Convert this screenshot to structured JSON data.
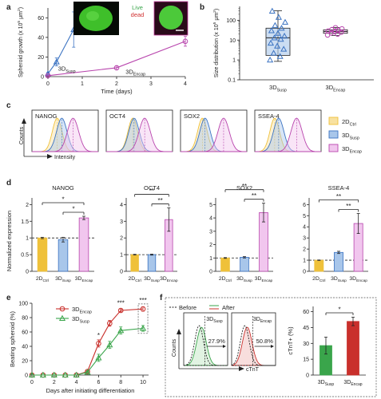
{
  "colors": {
    "susp": "#3b73c2",
    "encap": "#b845ad",
    "ctrl": "#efc13a",
    "susp_fill": "#a8c6ea",
    "encap_fill": "#f1c6ee",
    "ctrl_fill": "#f8e1a0",
    "red": "#c9302c",
    "green": "#3aa54b",
    "black": "#222222"
  },
  "panel_labels": [
    "a",
    "b",
    "c",
    "d",
    "e",
    "f"
  ],
  "group_labels": {
    "ctrl": {
      "main": "2D",
      "sub": "Ctrl"
    },
    "susp": {
      "main": "3D",
      "sub": "Susp"
    },
    "encap": {
      "main": "3D",
      "sub": "Encap"
    }
  },
  "a": {
    "ylabel_main": "Spheroid growth (x 10",
    "ylabel_exp": "5",
    "ylabel_unit": " μm",
    "ylabel_exp2": "2",
    "ylabel_end": ")",
    "xlabel": "Time (days)",
    "legend_live": "Live",
    "legend_dead": "dead"
  },
  "b": {
    "ylabel_main": "Size distribution (x 10",
    "ylabel_exp": "5",
    "ylabel_unit": " μm",
    "ylabel_exp2": "2",
    "ylabel_end": ")"
  },
  "c": {
    "markers": [
      "NANOG",
      "OCT4",
      "SOX2",
      "SSEA-4"
    ],
    "y_axis": "Counts",
    "x_axis": "Intensity"
  },
  "d": {
    "ylabel": "Normalized expression",
    "markers": [
      "NANOG",
      "OCT4",
      "SOX2",
      "SSEA-4"
    ],
    "star_single": "*",
    "star_double": "**"
  },
  "e": {
    "ylabel": "Beating spheroid (%)",
    "xlabel": "Days after initiating differentiation",
    "stars": [
      "*",
      "***",
      "***"
    ]
  },
  "f": {
    "legend_before": "Before",
    "legend_after": "After",
    "pct_susp": "27.9%",
    "pct_encap": "50.8%",
    "x_axis": "cTnT",
    "y_axis": "Counts",
    "bar_ylabel": "cTnT+ (%)",
    "star": "*"
  },
  "chart_data": [
    {
      "panel": "a",
      "type": "line",
      "xlabel": "Time (days)",
      "ylabel": "Spheroid growth (x 10^5 μm^2)",
      "xlim": [
        0,
        4
      ],
      "ylim": [
        0,
        70
      ],
      "xticks": [
        0,
        1,
        2,
        3,
        4
      ],
      "yticks": [
        0,
        20,
        40,
        60
      ],
      "series": [
        {
          "name": "3D_Susp",
          "x": [
            0,
            0.25,
            0.75
          ],
          "y": [
            3,
            15,
            48
          ],
          "err": [
            1,
            4,
            18
          ]
        },
        {
          "name": "3D_Encap",
          "x": [
            0,
            2,
            4
          ],
          "y": [
            1,
            9,
            36
          ],
          "err": [
            0.5,
            2,
            5
          ]
        }
      ]
    },
    {
      "panel": "b",
      "type": "box",
      "ylabel": "Size distribution (x 10^5 μm^2)",
      "yscale": "log",
      "ylim": [
        0.1,
        500
      ],
      "yticks": [
        0.1,
        1,
        10,
        100
      ],
      "categories": [
        "3D_Susp",
        "3D_Encap"
      ],
      "boxes": [
        {
          "min": 0.85,
          "q1": 1.7,
          "median": 13,
          "q3": 40,
          "max": 300,
          "points": [
            1.0,
            1.5,
            2.2,
            3.5,
            5,
            7,
            11,
            13,
            16,
            22,
            30,
            40,
            55,
            80,
            140,
            290
          ]
        },
        {
          "min": 17,
          "q1": 22,
          "median": 27,
          "q3": 33,
          "max": 43,
          "points": [
            18,
            20,
            23,
            25,
            27,
            29,
            31,
            34,
            37,
            42
          ]
        }
      ]
    },
    {
      "panel": "c",
      "type": "histogram",
      "titles": [
        "NANOG",
        "OCT4",
        "SOX2",
        "SSEA-4"
      ],
      "series": [
        "2D_Ctrl",
        "3D_Susp",
        "3D_Encap"
      ],
      "peaks": [
        [
          0.38,
          0.45,
          0.62
        ],
        [
          0.4,
          0.42,
          0.58
        ],
        [
          0.33,
          0.37,
          0.65
        ],
        [
          0.3,
          0.36,
          0.63
        ]
      ]
    },
    {
      "panel": "d",
      "type": "bar",
      "ylabel": "Normalized expression",
      "categories": [
        "2D_Ctrl",
        "3D_Susp",
        "3D_Encap"
      ],
      "charts": [
        {
          "title": "NANOG",
          "ylim": [
            0,
            2.2
          ],
          "yticks": [
            0,
            0.5,
            1,
            1.5,
            2
          ],
          "values": [
            1.0,
            0.95,
            1.6
          ],
          "err": [
            0.02,
            0.07,
            0.05
          ]
        },
        {
          "title": "OCT4",
          "ylim": [
            0,
            4.4
          ],
          "yticks": [
            0,
            1,
            2,
            3,
            4
          ],
          "values": [
            1.0,
            1.0,
            3.1
          ],
          "err": [
            0.02,
            0.03,
            0.7
          ]
        },
        {
          "title": "SOX2",
          "ylim": [
            0,
            5.5
          ],
          "yticks": [
            0,
            1,
            2,
            3,
            4,
            5
          ],
          "values": [
            1.0,
            1.05,
            4.4
          ],
          "err": [
            0.03,
            0.05,
            0.7
          ]
        },
        {
          "title": "SSEA-4",
          "ylim": [
            0,
            6.6
          ],
          "yticks": [
            0,
            1,
            2,
            3,
            4,
            5,
            6
          ],
          "values": [
            1.0,
            1.7,
            4.3
          ],
          "err": [
            0.02,
            0.1,
            0.9
          ]
        }
      ]
    },
    {
      "panel": "e",
      "type": "line",
      "xlabel": "Days after initiating differentiation",
      "ylabel": "Beating spheroid (%)",
      "xlim": [
        0,
        10.5
      ],
      "ylim": [
        0,
        100
      ],
      "xticks": [
        0,
        2,
        4,
        6,
        8,
        10
      ],
      "yticks": [
        0,
        20,
        40,
        60,
        80,
        100
      ],
      "series": [
        {
          "name": "3D_Encap",
          "x": [
            0,
            1,
            2,
            3,
            4,
            5,
            6,
            7,
            8,
            10
          ],
          "y": [
            0,
            0,
            0,
            0,
            0,
            5,
            44,
            72,
            90,
            92
          ],
          "err": [
            0,
            0,
            0,
            0,
            0,
            1,
            5,
            4,
            2,
            3
          ]
        },
        {
          "name": "3D_Susp",
          "x": [
            0,
            1,
            2,
            3,
            4,
            5,
            6,
            7,
            8,
            10
          ],
          "y": [
            0,
            0,
            0,
            0,
            0,
            4,
            24,
            42,
            62,
            65
          ],
          "err": [
            0,
            0,
            0,
            0,
            0,
            1,
            5,
            5,
            5,
            4
          ]
        }
      ]
    },
    {
      "panel": "f",
      "type": "bar",
      "ylabel": "cTnT+ (%)",
      "ylim": [
        0,
        65
      ],
      "yticks": [
        0,
        15,
        30,
        45,
        60
      ],
      "categories": [
        "3D_Susp",
        "3D_Encap"
      ],
      "values": [
        27.9,
        50.8
      ],
      "err": [
        8,
        4
      ]
    }
  ]
}
